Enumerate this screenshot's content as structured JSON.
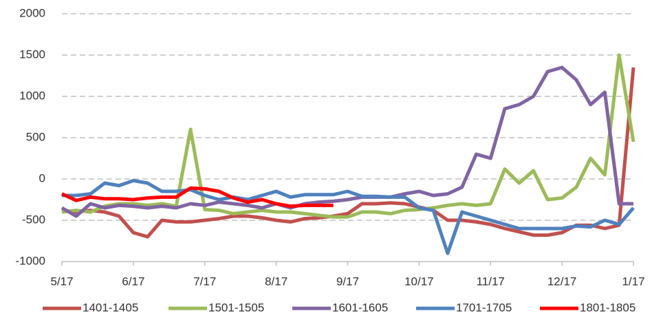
{
  "chart_data": {
    "type": "line",
    "categories": [
      "5/17",
      null,
      null,
      null,
      null,
      "6/17",
      null,
      null,
      null,
      null,
      "7/17",
      null,
      null,
      null,
      null,
      "8/17",
      null,
      null,
      null,
      null,
      "9/17",
      null,
      null,
      null,
      null,
      "10/17",
      null,
      null,
      null,
      null,
      "11/17",
      null,
      null,
      null,
      null,
      "12/17",
      null,
      null,
      null,
      null,
      "1/17"
    ],
    "ylim": [
      -1000,
      2000
    ],
    "yticks": [
      -1000,
      -500,
      0,
      500,
      1000,
      1500,
      2000
    ],
    "grid": true,
    "series": [
      {
        "name": "1401-1405",
        "color": "#c0504d",
        "values": [
          -380,
          -400,
          -380,
          -400,
          -450,
          -650,
          -700,
          -500,
          -520,
          -520,
          -500,
          -480,
          -450,
          -450,
          -470,
          -500,
          -520,
          -480,
          -470,
          -450,
          -420,
          -300,
          -300,
          -290,
          -300,
          -340,
          -380,
          -500,
          -500,
          -520,
          -550,
          -600,
          -640,
          -680,
          -680,
          -650,
          -560,
          -560,
          -600,
          -560,
          1350
        ]
      },
      {
        "name": "1501-1505",
        "color": "#9bbb59",
        "values": [
          -400,
          -380,
          -400,
          -330,
          -300,
          -300,
          -320,
          -300,
          -330,
          600,
          -370,
          -380,
          -420,
          -400,
          -380,
          -400,
          -400,
          -420,
          -440,
          -460,
          -460,
          -400,
          -400,
          -420,
          -380,
          -370,
          -350,
          -320,
          -300,
          -320,
          -300,
          120,
          -50,
          100,
          -250,
          -230,
          -100,
          250,
          50,
          1500,
          450
        ]
      },
      {
        "name": "1601-1605",
        "color": "#8064a2",
        "values": [
          -350,
          -450,
          -300,
          -350,
          -320,
          -330,
          -350,
          -330,
          -350,
          -300,
          -320,
          -280,
          -300,
          -320,
          -350,
          -300,
          -350,
          -300,
          -280,
          -270,
          -250,
          -220,
          -220,
          -220,
          -180,
          -150,
          -200,
          -180,
          -100,
          300,
          250,
          850,
          900,
          1000,
          1300,
          1350,
          1200,
          900,
          1050,
          -300,
          -300
        ]
      },
      {
        "name": "1701-1705",
        "color": "#4f81bd",
        "values": [
          -200,
          -200,
          -180,
          -50,
          -80,
          -20,
          -50,
          -150,
          -150,
          -130,
          -200,
          -250,
          -220,
          -250,
          -200,
          -150,
          -220,
          -190,
          -190,
          -190,
          -150,
          -210,
          -210,
          -220,
          -220,
          -350,
          -380,
          -900,
          -400,
          -450,
          -500,
          -550,
          -600,
          -600,
          -600,
          -600,
          -570,
          -580,
          -500,
          -550,
          -350
        ]
      },
      {
        "name": "1801-1805",
        "color": "#ff0000",
        "values": [
          -180,
          -260,
          -220,
          -240,
          -240,
          -250,
          -230,
          -220,
          -220,
          -110,
          -120,
          -150,
          -230,
          -280,
          -250,
          -300,
          -330,
          -320,
          -320,
          -320,
          null,
          null,
          null,
          null,
          null,
          null,
          null,
          null,
          null,
          null,
          null,
          null,
          null,
          null,
          null,
          null,
          null,
          null,
          null,
          null,
          null
        ]
      }
    ]
  }
}
